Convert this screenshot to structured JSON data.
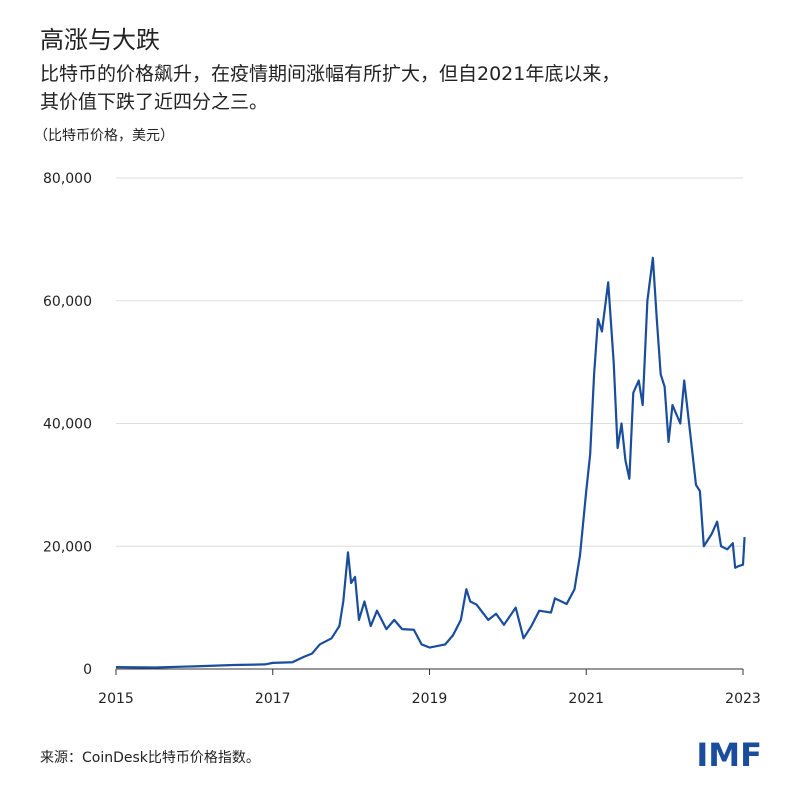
{
  "chart_data": {
    "type": "line",
    "title": "高涨与大跌",
    "subtitle": [
      "比特币的价格飙升，在疫情期间涨幅有所扩大，但自2021年底以来，",
      "其价值下跌了近四分之三。"
    ],
    "y_label": "（比特币价格，美元）",
    "source": "来源：CoinDesk比特币价格指数。",
    "logo": "IMF",
    "xlim": [
      2015,
      2023
    ],
    "xticks": [
      2015,
      2017,
      2019,
      2021,
      2023
    ],
    "ylim": [
      0,
      80000
    ],
    "yticks": [
      0,
      {
        "value": 20000,
        "label": "20,000"
      },
      {
        "value": 40000,
        "label": "40,000"
      },
      {
        "value": 60000,
        "label": "60,000"
      },
      {
        "value": 80000,
        "label": "80,000"
      }
    ],
    "grid": true,
    "x": [
      2015.0,
      2015.5,
      2015.9,
      2016.0,
      2016.5,
      2016.9,
      2017.0,
      2017.25,
      2017.4,
      2017.5,
      2017.6,
      2017.75,
      2017.85,
      2017.9,
      2017.96,
      2018.0,
      2018.05,
      2018.1,
      2018.17,
      2018.25,
      2018.33,
      2018.45,
      2018.55,
      2018.65,
      2018.8,
      2018.9,
      2019.0,
      2019.2,
      2019.3,
      2019.4,
      2019.47,
      2019.52,
      2019.6,
      2019.75,
      2019.85,
      2019.95,
      2020.1,
      2020.2,
      2020.3,
      2020.4,
      2020.55,
      2020.6,
      2020.75,
      2020.85,
      2020.92,
      2021.0,
      2021.05,
      2021.1,
      2021.15,
      2021.2,
      2021.28,
      2021.35,
      2021.4,
      2021.45,
      2021.5,
      2021.55,
      2021.6,
      2021.67,
      2021.72,
      2021.78,
      2021.85,
      2021.9,
      2021.95,
      2022.0,
      2022.05,
      2022.1,
      2022.2,
      2022.25,
      2022.33,
      2022.4,
      2022.45,
      2022.5,
      2022.6,
      2022.67,
      2022.72,
      2022.8,
      2022.87,
      2022.9,
      2022.95,
      2023.0,
      2023.02
    ],
    "series": [
      {
        "color": "#1a4d9c",
        "values": [
          300,
          250,
          400,
          430,
          650,
          750,
          1000,
          1100,
          2000,
          2500,
          4000,
          5000,
          7000,
          11000,
          19000,
          14000,
          15000,
          8000,
          11000,
          7000,
          9500,
          6500,
          8000,
          6500,
          6400,
          4000,
          3500,
          4000,
          5500,
          8000,
          13000,
          11000,
          10500,
          8000,
          9000,
          7200,
          10000,
          5000,
          7000,
          9500,
          9200,
          11500,
          10600,
          13000,
          18500,
          29000,
          35000,
          48000,
          57000,
          55000,
          63000,
          50000,
          36000,
          40000,
          34000,
          31000,
          45000,
          47000,
          43000,
          60000,
          67000,
          57000,
          48000,
          46000,
          37000,
          43000,
          40000,
          47000,
          38000,
          30000,
          29000,
          20000,
          22000,
          24000,
          20000,
          19500,
          20500,
          16500,
          16800,
          17000,
          21500
        ]
      }
    ]
  }
}
